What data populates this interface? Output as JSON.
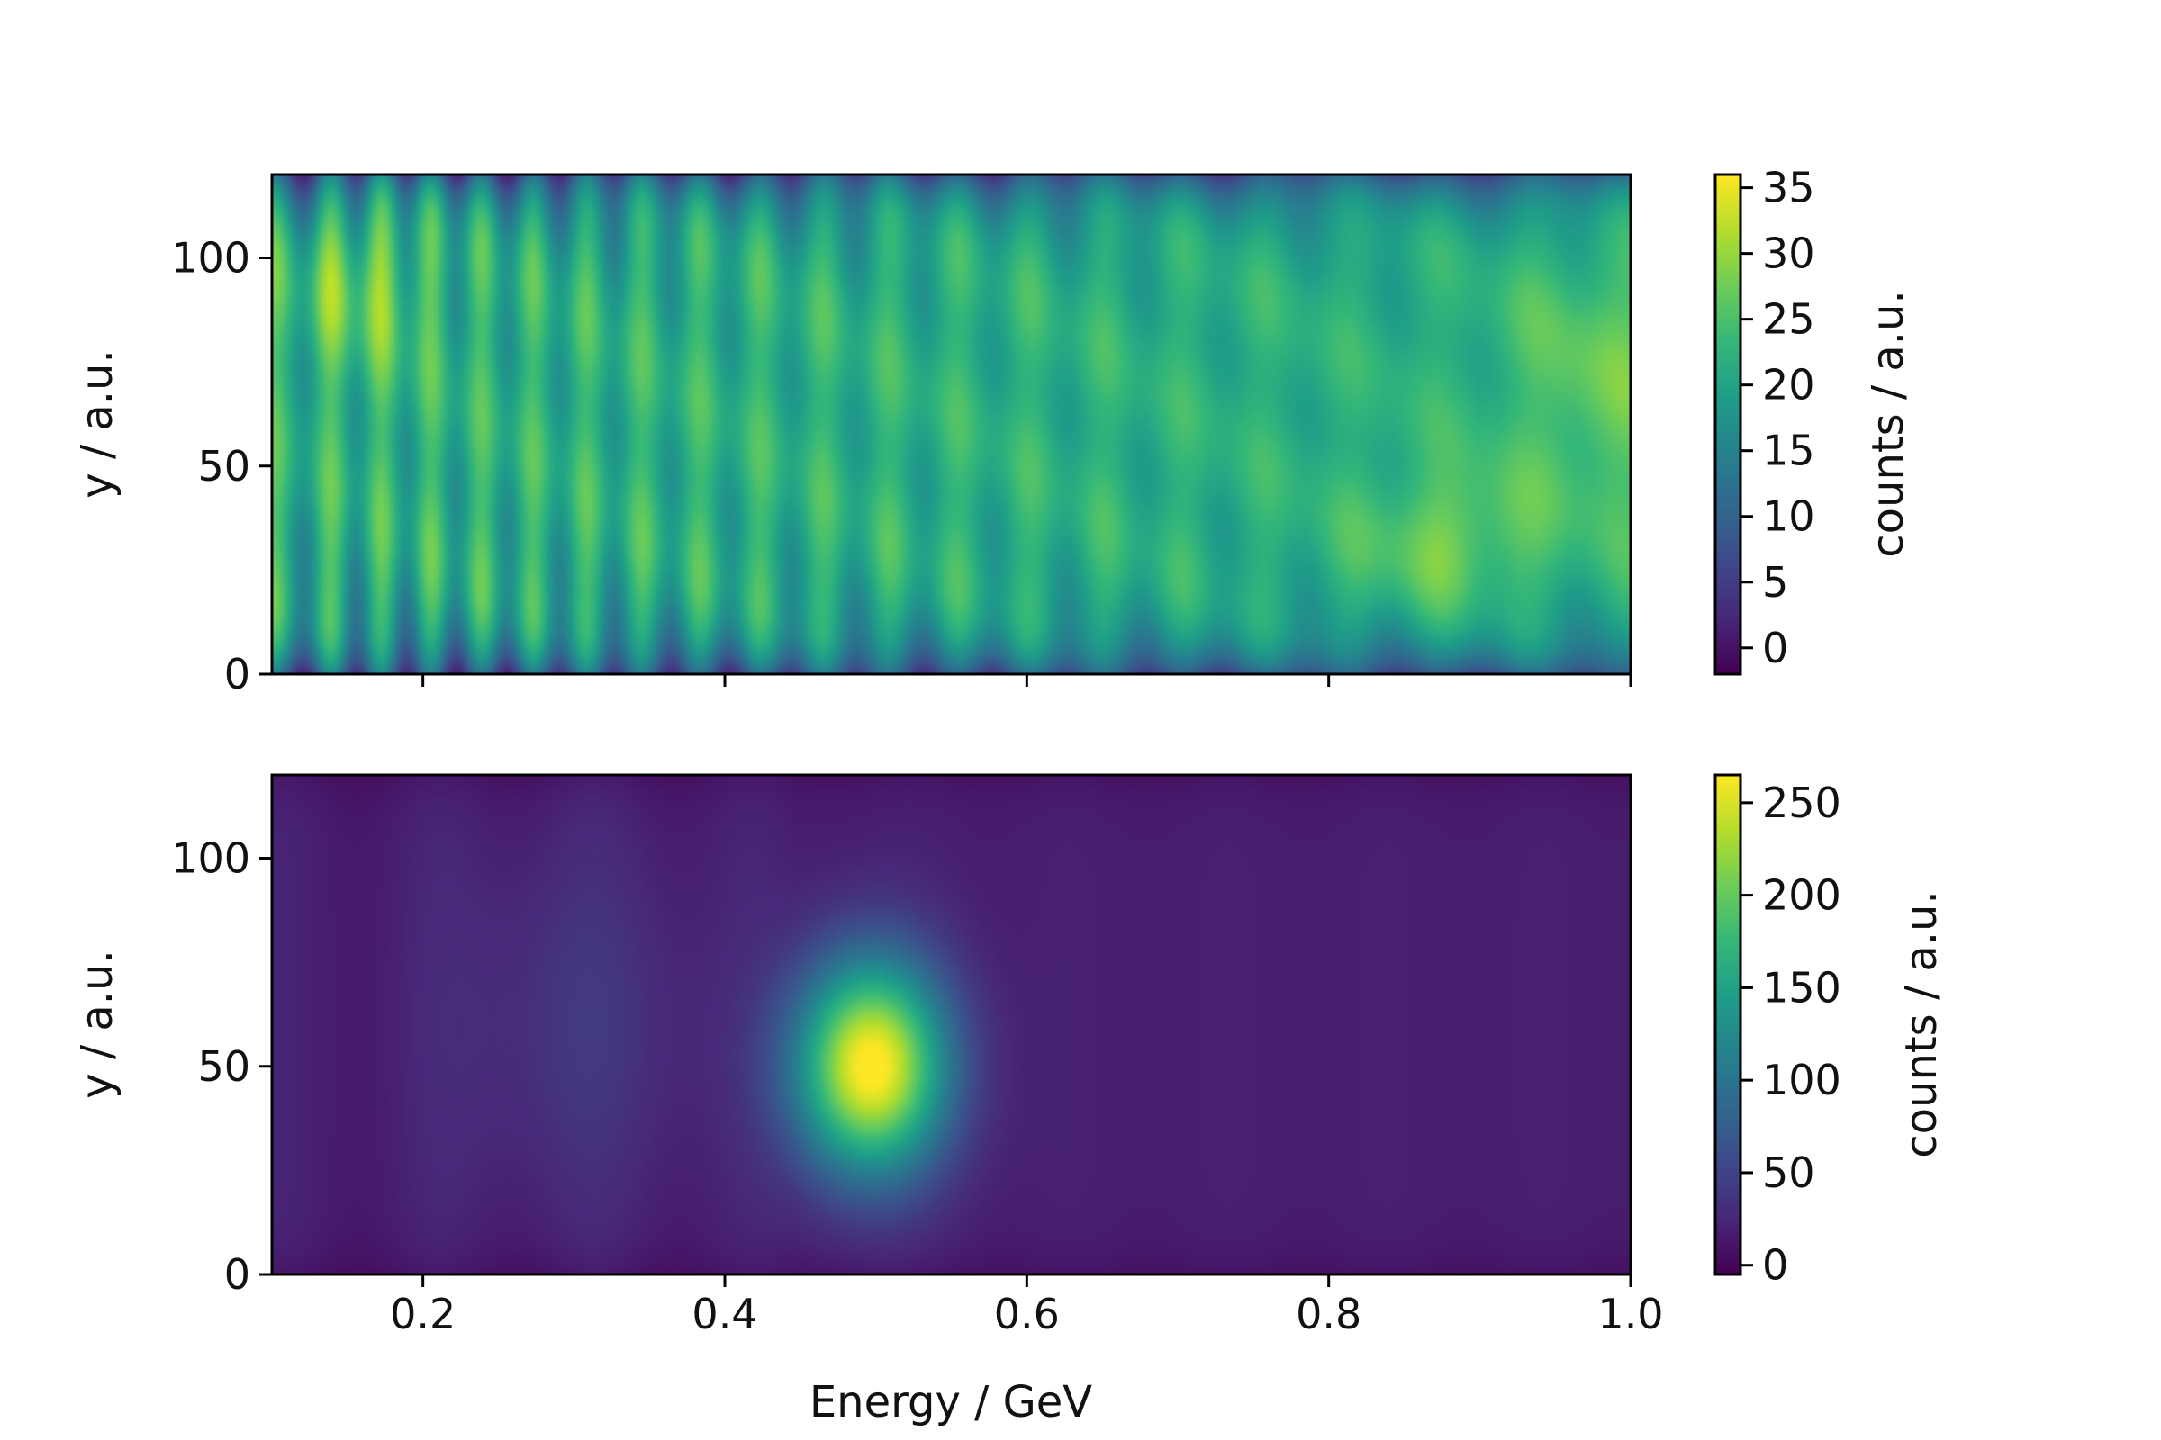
{
  "chart_data": [
    {
      "type": "heatmap",
      "title": "",
      "xlabel": "",
      "ylabel": "y / a.u.",
      "xlim": [
        0.1,
        1.0
      ],
      "ylim": [
        0,
        120
      ],
      "x_ticks": [
        0.2,
        0.4,
        0.6,
        0.8,
        1.0
      ],
      "x_tick_labels_shown": false,
      "y_ticks": [
        0,
        50,
        100
      ],
      "y_tick_labels": [
        "0",
        "50",
        "100"
      ],
      "colormap": "viridis",
      "colorbar": {
        "label": "counts / a.u.",
        "range": [
          -2,
          36
        ],
        "ticks": [
          0,
          5,
          10,
          15,
          20,
          25,
          30,
          35
        ],
        "tick_labels": [
          "0",
          "5",
          "10",
          "15",
          "20",
          "25",
          "30",
          "35"
        ]
      },
      "description": "interference fringes with period growing with energy; brightest near 0.15 GeV at y≈90, bright region near 0.9–1.0 GeV",
      "features": [
        {
          "kind": "fringes",
          "x_range": [
            0.1,
            0.75
          ],
          "y_range": [
            5,
            115
          ],
          "base": 24,
          "amp": 7
        },
        {
          "kind": "blob",
          "x": 0.16,
          "y": 95,
          "sx": 0.03,
          "sy": 15,
          "amp": 6
        },
        {
          "kind": "blob",
          "x": 0.88,
          "y": 32,
          "sx": 0.04,
          "sy": 12,
          "amp": 6
        },
        {
          "kind": "blob",
          "x": 0.98,
          "y": 70,
          "sx": 0.04,
          "sy": 25,
          "amp": 5
        }
      ]
    },
    {
      "type": "heatmap",
      "title": "",
      "xlabel": "Energy / GeV",
      "ylabel": "y / a.u.",
      "xlim": [
        0.1,
        1.0
      ],
      "ylim": [
        0,
        120
      ],
      "x_ticks": [
        0.2,
        0.4,
        0.6,
        0.8,
        1.0
      ],
      "x_tick_labels": [
        "0.2",
        "0.4",
        "0.6",
        "0.8",
        "1.0"
      ],
      "y_ticks": [
        0,
        50,
        100
      ],
      "y_tick_labels": [
        "0",
        "50",
        "100"
      ],
      "colormap": "viridis",
      "colorbar": {
        "label": "counts / a.u.",
        "range": [
          -5,
          265
        ],
        "ticks": [
          0,
          50,
          100,
          150,
          200,
          250
        ],
        "tick_labels": [
          "0",
          "50",
          "100",
          "150",
          "200",
          "250"
        ]
      },
      "description": "bright peak centred at 0.5 GeV, y≈50; weak background elsewhere",
      "features": [
        {
          "kind": "blob",
          "x": 0.497,
          "y": 50,
          "sx": 0.035,
          "sy": 18,
          "amp": 255
        },
        {
          "kind": "blob",
          "x": 0.3,
          "y": 60,
          "sx": 0.06,
          "sy": 30,
          "amp": 20
        },
        {
          "kind": "background",
          "value": 18
        }
      ]
    }
  ],
  "colors": {
    "viridis_low": "#440154",
    "viridis_mid": "#21918c",
    "viridis_high": "#fde725"
  }
}
